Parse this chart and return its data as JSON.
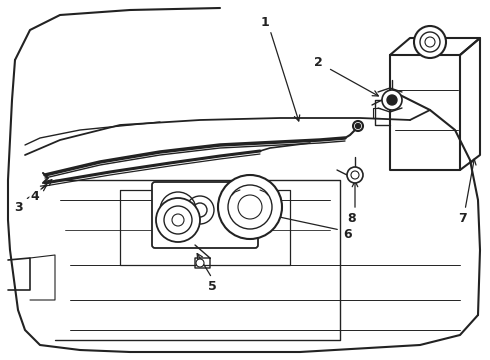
{
  "bg_color": "#ffffff",
  "line_color": "#222222",
  "figsize": [
    4.9,
    3.6
  ],
  "dpi": 100,
  "lw_main": 1.4,
  "lw_thin": 0.8,
  "lw_thick": 2.0
}
